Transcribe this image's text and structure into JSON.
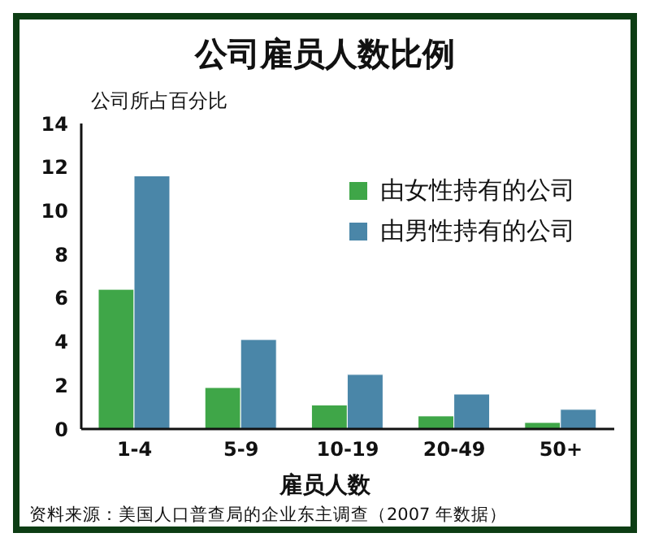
{
  "chart_data": {
    "type": "bar",
    "title": "公司雇员人数比例",
    "ylabel": "公司所占百分比",
    "xlabel": "雇员人数",
    "categories": [
      "1-4",
      "5-9",
      "10-19",
      "20-49",
      "50+"
    ],
    "series": [
      {
        "name": "由女性持有的公司",
        "color": "#3fa648",
        "values": [
          6.4,
          1.9,
          1.1,
          0.6,
          0.3
        ]
      },
      {
        "name": "由男性持有的公司",
        "color": "#4a86a8",
        "values": [
          11.6,
          4.1,
          2.5,
          1.6,
          0.9
        ]
      }
    ],
    "ylim": [
      0,
      14
    ],
    "yticks": [
      0,
      2,
      4,
      6,
      8,
      10,
      12,
      14
    ],
    "grid": false,
    "legend": "top right",
    "annotations": [
      "资料来源：美国人口普查局的企业东主调查（2007 年数据）"
    ]
  }
}
